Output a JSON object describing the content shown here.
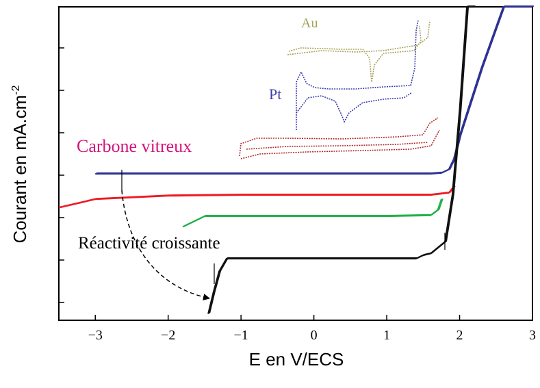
{
  "chart_data": {
    "type": "line",
    "title": "",
    "xlabel": "E en V/ECS",
    "ylabel": "Courant en mA.cm",
    "ylabel_superscript": "-2",
    "xlim": [
      -3.5,
      3.0
    ],
    "xticks": [
      -3,
      -2,
      -1,
      0,
      1,
      2,
      3
    ],
    "xtick_labels": [
      "−3",
      "−2",
      "−1",
      "0",
      "1",
      "2",
      "3"
    ],
    "y_tick_count": 7,
    "grid": false,
    "annotations": {
      "au": "Au",
      "pt": "Pt",
      "carbone": "Carbone vitreux",
      "reactivite": "Réactivité croissante"
    },
    "series": [
      {
        "color": "#2e3192",
        "x": [
          -3.0,
          1.6,
          1.75,
          1.85,
          1.92,
          2.0,
          2.3,
          2.6,
          3.0
        ],
        "y": [
          0,
          0,
          0.02,
          0.1,
          0.35,
          0.9,
          2.5,
          4.3,
          6.7
        ]
      },
      {
        "color": "#ed1c24",
        "x": [
          -3.5,
          -3.0,
          -2.0,
          -1.0,
          0.0,
          1.0,
          1.6,
          1.85,
          1.92
        ],
        "y": [
          -0.8,
          -0.6,
          -0.52,
          -0.5,
          -0.5,
          -0.5,
          -0.5,
          -0.45,
          -0.3
        ]
      },
      {
        "color": "#22b14c",
        "x": [
          -1.8,
          -1.5,
          -1.0,
          0.0,
          1.0,
          1.6,
          1.7,
          1.75
        ],
        "y": [
          -1.25,
          -1.0,
          -1.0,
          -1.0,
          -1.0,
          -0.98,
          -0.85,
          -0.6
        ]
      },
      {
        "color": "#111111",
        "x": [
          -1.45,
          -1.38,
          -1.3,
          -1.2,
          -1.0,
          0.0,
          1.0,
          1.4,
          1.5,
          1.6,
          1.8,
          1.9,
          2.0,
          2.1,
          2.2
        ],
        "y": [
          -3.3,
          -2.8,
          -2.3,
          -2.0,
          -2.0,
          -2.0,
          -2.0,
          -2.0,
          -1.92,
          -1.88,
          -1.6,
          -0.5,
          1.5,
          4.0,
          6.5
        ]
      }
    ]
  }
}
